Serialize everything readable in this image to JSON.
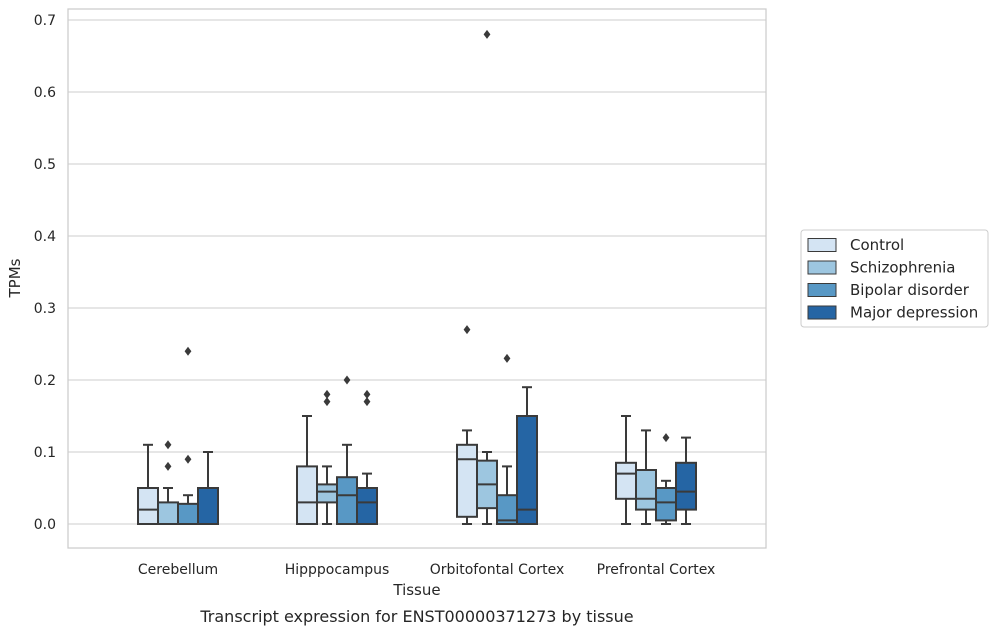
{
  "chart_data": {
    "type": "box",
    "title": "",
    "caption": "Transcript expression for ENST00000371273 by tissue",
    "xlabel": "Tissue",
    "ylabel": "TPMs",
    "ylim": [
      -0.033,
      0.715
    ],
    "yticks": [
      0.0,
      0.1,
      0.2,
      0.3,
      0.4,
      0.5,
      0.6,
      0.7
    ],
    "ytick_labels": [
      "0.0",
      "0.1",
      "0.2",
      "0.3",
      "0.4",
      "0.5",
      "0.6",
      "0.7"
    ],
    "grid": "horizontal",
    "legend_position": "right",
    "categories": [
      "Cerebellum",
      "Hipppocampus",
      "Orbitofontal Cortex",
      "Prefrontal Cortex"
    ],
    "series": [
      {
        "name": "Control",
        "color": "#d4e4f3",
        "boxes": [
          {
            "whislo": 0.0,
            "q1": 0.0,
            "med": 0.02,
            "q3": 0.05,
            "whishi": 0.11,
            "fliers": []
          },
          {
            "whislo": 0.0,
            "q1": 0.0,
            "med": 0.03,
            "q3": 0.08,
            "whishi": 0.15,
            "fliers": []
          },
          {
            "whislo": 0.0,
            "q1": 0.01,
            "med": 0.09,
            "q3": 0.11,
            "whishi": 0.13,
            "fliers": [
              0.27
            ]
          },
          {
            "whislo": 0.0,
            "q1": 0.035,
            "med": 0.07,
            "q3": 0.085,
            "whishi": 0.15,
            "fliers": []
          }
        ]
      },
      {
        "name": "Schizophrenia",
        "color": "#9dc6e0",
        "boxes": [
          {
            "whislo": 0.0,
            "q1": 0.0,
            "med": 0.0,
            "q3": 0.03,
            "whishi": 0.05,
            "fliers": [
              0.08,
              0.11
            ]
          },
          {
            "whislo": 0.0,
            "q1": 0.03,
            "med": 0.045,
            "q3": 0.055,
            "whishi": 0.08,
            "fliers": [
              0.17,
              0.18
            ]
          },
          {
            "whislo": 0.0,
            "q1": 0.022,
            "med": 0.055,
            "q3": 0.088,
            "whishi": 0.1,
            "fliers": [
              0.68
            ]
          },
          {
            "whislo": 0.0,
            "q1": 0.02,
            "med": 0.035,
            "q3": 0.075,
            "whishi": 0.13,
            "fliers": []
          }
        ]
      },
      {
        "name": "Bipolar disorder",
        "color": "#5898c5",
        "boxes": [
          {
            "whislo": 0.0,
            "q1": 0.0,
            "med": 0.0,
            "q3": 0.028,
            "whishi": 0.04,
            "fliers": [
              0.09,
              0.24
            ]
          },
          {
            "whislo": 0.0,
            "q1": 0.0,
            "med": 0.04,
            "q3": 0.065,
            "whishi": 0.11,
            "fliers": [
              0.2
            ]
          },
          {
            "whislo": 0.0,
            "q1": 0.0,
            "med": 0.005,
            "q3": 0.04,
            "whishi": 0.08,
            "fliers": [
              0.23
            ]
          },
          {
            "whislo": 0.0,
            "q1": 0.005,
            "med": 0.03,
            "q3": 0.05,
            "whishi": 0.06,
            "fliers": [
              0.12
            ]
          }
        ]
      },
      {
        "name": "Major depression",
        "color": "#2565a4",
        "boxes": [
          {
            "whislo": 0.0,
            "q1": 0.0,
            "med": 0.0,
            "q3": 0.05,
            "whishi": 0.1,
            "fliers": []
          },
          {
            "whislo": 0.0,
            "q1": 0.0,
            "med": 0.03,
            "q3": 0.05,
            "whishi": 0.07,
            "fliers": [
              0.17,
              0.18
            ]
          },
          {
            "whislo": 0.0,
            "q1": 0.0,
            "med": 0.02,
            "q3": 0.15,
            "whishi": 0.19,
            "fliers": []
          },
          {
            "whislo": 0.0,
            "q1": 0.02,
            "med": 0.045,
            "q3": 0.085,
            "whishi": 0.12,
            "fliers": []
          }
        ]
      }
    ]
  }
}
